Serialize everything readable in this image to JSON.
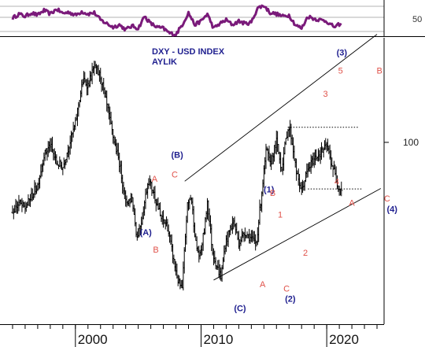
{
  "chart_data": {
    "type": "ohlc",
    "title": "DXY - USD INDEX",
    "subtitle": "AYLIK",
    "colors": {
      "title": "#1f1f8f",
      "wave_major": "#1f1f8f",
      "wave_minor": "#e0524a",
      "rsi": "#7a1a7a",
      "bars": "#000000",
      "channel": "#000000",
      "dotted": "#000000",
      "axis": "#000000"
    },
    "x_axis": {
      "ticks": [
        {
          "value": 2000,
          "label": "2000"
        },
        {
          "value": 2010,
          "label": "2010"
        },
        {
          "value": 2020,
          "label": "2020"
        }
      ]
    },
    "y_axis": {
      "scale": "log",
      "ticks": [
        {
          "value": 100,
          "label": "100"
        }
      ]
    },
    "rsi_panel": {
      "ticks": [
        {
          "value": 50,
          "label": "50"
        }
      ],
      "series": [
        [
          1995.0,
          55
        ],
        [
          1995.5,
          62
        ],
        [
          1996.0,
          58
        ],
        [
          1996.5,
          64
        ],
        [
          1997.0,
          60
        ],
        [
          1997.5,
          68
        ],
        [
          1998.0,
          62
        ],
        [
          1998.5,
          70
        ],
        [
          1999.0,
          63
        ],
        [
          1999.5,
          65
        ],
        [
          2000.0,
          60
        ],
        [
          2000.5,
          66
        ],
        [
          2001.0,
          62
        ],
        [
          2001.5,
          64
        ],
        [
          2002.0,
          52
        ],
        [
          2002.5,
          46
        ],
        [
          2003.0,
          40
        ],
        [
          2003.5,
          44
        ],
        [
          2004.0,
          36
        ],
        [
          2004.5,
          42
        ],
        [
          2005.0,
          38
        ],
        [
          2005.5,
          58
        ],
        [
          2006.0,
          46
        ],
        [
          2006.5,
          40
        ],
        [
          2007.0,
          38
        ],
        [
          2007.5,
          30
        ],
        [
          2008.0,
          28
        ],
        [
          2008.5,
          44
        ],
        [
          2009.0,
          64
        ],
        [
          2009.5,
          44
        ],
        [
          2010.0,
          50
        ],
        [
          2010.5,
          62
        ],
        [
          2011.0,
          38
        ],
        [
          2011.5,
          46
        ],
        [
          2012.0,
          52
        ],
        [
          2012.5,
          44
        ],
        [
          2013.0,
          50
        ],
        [
          2013.5,
          46
        ],
        [
          2014.0,
          48
        ],
        [
          2014.5,
          72
        ],
        [
          2015.0,
          76
        ],
        [
          2015.5,
          64
        ],
        [
          2016.0,
          62
        ],
        [
          2016.5,
          58
        ],
        [
          2017.0,
          60
        ],
        [
          2017.5,
          44
        ],
        [
          2018.0,
          38
        ],
        [
          2018.5,
          58
        ],
        [
          2019.0,
          54
        ],
        [
          2019.5,
          52
        ],
        [
          2020.0,
          50
        ],
        [
          2020.3,
          44
        ],
        [
          2020.7,
          40
        ],
        [
          2021.0,
          45
        ],
        [
          2021.2,
          42
        ]
      ]
    },
    "series": [
      [
        1995.0,
        85.2
      ],
      [
        1995.5,
        87.1
      ],
      [
        1996.0,
        86.0
      ],
      [
        1996.5,
        88.4
      ],
      [
        1997.0,
        90.7
      ],
      [
        1997.5,
        97.1
      ],
      [
        1998.0,
        99.4
      ],
      [
        1998.5,
        95.4
      ],
      [
        1999.0,
        94.5
      ],
      [
        1999.5,
        99.4
      ],
      [
        2000.0,
        104.3
      ],
      [
        2000.3,
        110.0
      ],
      [
        2000.6,
        115.2
      ],
      [
        2001.0,
        114.0
      ],
      [
        2001.5,
        118.7
      ],
      [
        2002.0,
        116.2
      ],
      [
        2002.5,
        108.7
      ],
      [
        2003.0,
        101.3
      ],
      [
        2003.5,
        95.5
      ],
      [
        2004.0,
        87.2
      ],
      [
        2004.5,
        88.0
      ],
      [
        2004.9,
        80.4
      ],
      [
        2005.3,
        84.0
      ],
      [
        2005.8,
        91.9
      ],
      [
        2006.3,
        88.6
      ],
      [
        2006.8,
        84.1
      ],
      [
        2007.3,
        82.8
      ],
      [
        2007.8,
        76.5
      ],
      [
        2008.2,
        72.6
      ],
      [
        2008.5,
        71.4
      ],
      [
        2008.9,
        86.4
      ],
      [
        2009.2,
        88.5
      ],
      [
        2009.6,
        79.0
      ],
      [
        2009.9,
        76.8
      ],
      [
        2010.3,
        82.5
      ],
      [
        2010.5,
        87.5
      ],
      [
        2010.9,
        78.0
      ],
      [
        2011.3,
        75.0
      ],
      [
        2011.6,
        73.5
      ],
      [
        2011.9,
        79.0
      ],
      [
        2012.3,
        82.0
      ],
      [
        2012.6,
        83.5
      ],
      [
        2013.0,
        79.5
      ],
      [
        2013.5,
        81.5
      ],
      [
        2014.0,
        80.2
      ],
      [
        2014.4,
        79.4
      ],
      [
        2014.8,
        88.5
      ],
      [
        2015.2,
        98.5
      ],
      [
        2015.5,
        95.0
      ],
      [
        2016.0,
        100.2
      ],
      [
        2016.4,
        94.0
      ],
      [
        2016.9,
        103.3
      ],
      [
        2017.1,
        102.8
      ],
      [
        2017.6,
        93.0
      ],
      [
        2018.0,
        89.5
      ],
      [
        2018.4,
        93.2
      ],
      [
        2018.8,
        95.5
      ],
      [
        2019.2,
        97.0
      ],
      [
        2019.6,
        97.8
      ],
      [
        2020.0,
        99.2
      ],
      [
        2020.3,
        96.0
      ],
      [
        2020.6,
        93.5
      ],
      [
        2020.9,
        90.5
      ],
      [
        2021.2,
        89.8
      ]
    ],
    "channel": {
      "upper": [
        [
          2008.7,
          91.5
        ],
        [
          2024.0,
          128.0
        ]
      ],
      "lower": [
        [
          2011.0,
          73.0
        ],
        [
          2024.3,
          90.0
        ]
      ]
    },
    "dotted_lines": [
      {
        "y": 103.5,
        "x": [
          2016.9,
          2022.5
        ]
      },
      {
        "y": 89.9,
        "x": [
          2018.5,
          2022.8
        ]
      }
    ],
    "wave_labels": [
      {
        "text": "(A)",
        "x": 2005.6,
        "y": 80.9,
        "style": "major"
      },
      {
        "text": "(B)",
        "x": 2008.1,
        "y": 96.5,
        "style": "major"
      },
      {
        "text": "(C)",
        "x": 2013.1,
        "y": 68.0,
        "style": "major"
      },
      {
        "text": "(1)",
        "x": 2015.4,
        "y": 89.2,
        "style": "major"
      },
      {
        "text": "(2)",
        "x": 2017.1,
        "y": 69.5,
        "style": "major"
      },
      {
        "text": "(3)",
        "x": 2021.2,
        "y": 122.0,
        "style": "major"
      },
      {
        "text": "(4)",
        "x": 2025.2,
        "y": 85.3,
        "style": "major"
      },
      {
        "text": "A",
        "x": 2006.3,
        "y": 91.4,
        "style": "minor"
      },
      {
        "text": "B",
        "x": 2006.4,
        "y": 77.7,
        "style": "minor"
      },
      {
        "text": "C",
        "x": 2007.9,
        "y": 92.3,
        "style": "minor"
      },
      {
        "text": "A",
        "x": 2014.9,
        "y": 71.8,
        "style": "minor"
      },
      {
        "text": "B",
        "x": 2015.7,
        "y": 88.5,
        "style": "minor"
      },
      {
        "text": "C",
        "x": 2016.8,
        "y": 71.1,
        "style": "minor"
      },
      {
        "text": "1",
        "x": 2016.3,
        "y": 84.2,
        "style": "minor"
      },
      {
        "text": "2",
        "x": 2018.3,
        "y": 77.2,
        "style": "minor"
      },
      {
        "text": "3",
        "x": 2019.9,
        "y": 111.0,
        "style": "minor"
      },
      {
        "text": "4",
        "x": 2020.8,
        "y": 90.8,
        "style": "minor"
      },
      {
        "text": "5",
        "x": 2021.1,
        "y": 117.0,
        "style": "minor"
      },
      {
        "text": "A",
        "x": 2022.0,
        "y": 86.5,
        "style": "minor"
      },
      {
        "text": "B",
        "x": 2024.2,
        "y": 117.0,
        "style": "minor"
      },
      {
        "text": "C",
        "x": 2024.8,
        "y": 87.4,
        "style": "minor"
      }
    ]
  }
}
